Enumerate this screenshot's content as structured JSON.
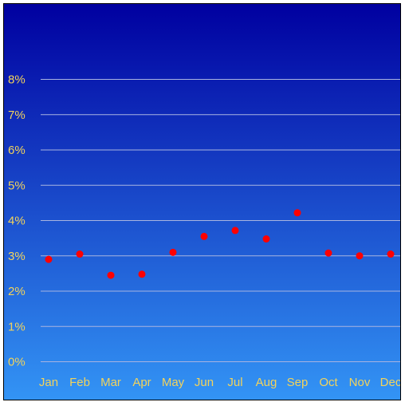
{
  "chart_data": {
    "type": "scatter",
    "title": "",
    "xlabel": "",
    "ylabel": "",
    "categories": [
      "Jan",
      "Feb",
      "Mar",
      "Apr",
      "May",
      "Jun",
      "Jul",
      "Aug",
      "Sep",
      "Oct",
      "Nov",
      "Dec"
    ],
    "values": [
      2.9,
      3.05,
      2.45,
      2.48,
      3.1,
      3.55,
      3.72,
      3.48,
      4.22,
      3.08,
      3.0,
      3.05
    ],
    "ylim": [
      0,
      8
    ],
    "y_tick_values": [
      0,
      1,
      2,
      3,
      4,
      5,
      6,
      7,
      8
    ],
    "y_tick_labels": [
      "0%",
      "1%",
      "2%",
      "3%",
      "4%",
      "5%",
      "6%",
      "7%",
      "8%"
    ],
    "grid": true,
    "legend": "none"
  },
  "colors": {
    "background_top": "#0000a0",
    "background_bottom": "#3394f5",
    "gridline": "#a8b4e0",
    "tick_label": "#f2d35c",
    "marker": "#ff0000"
  }
}
